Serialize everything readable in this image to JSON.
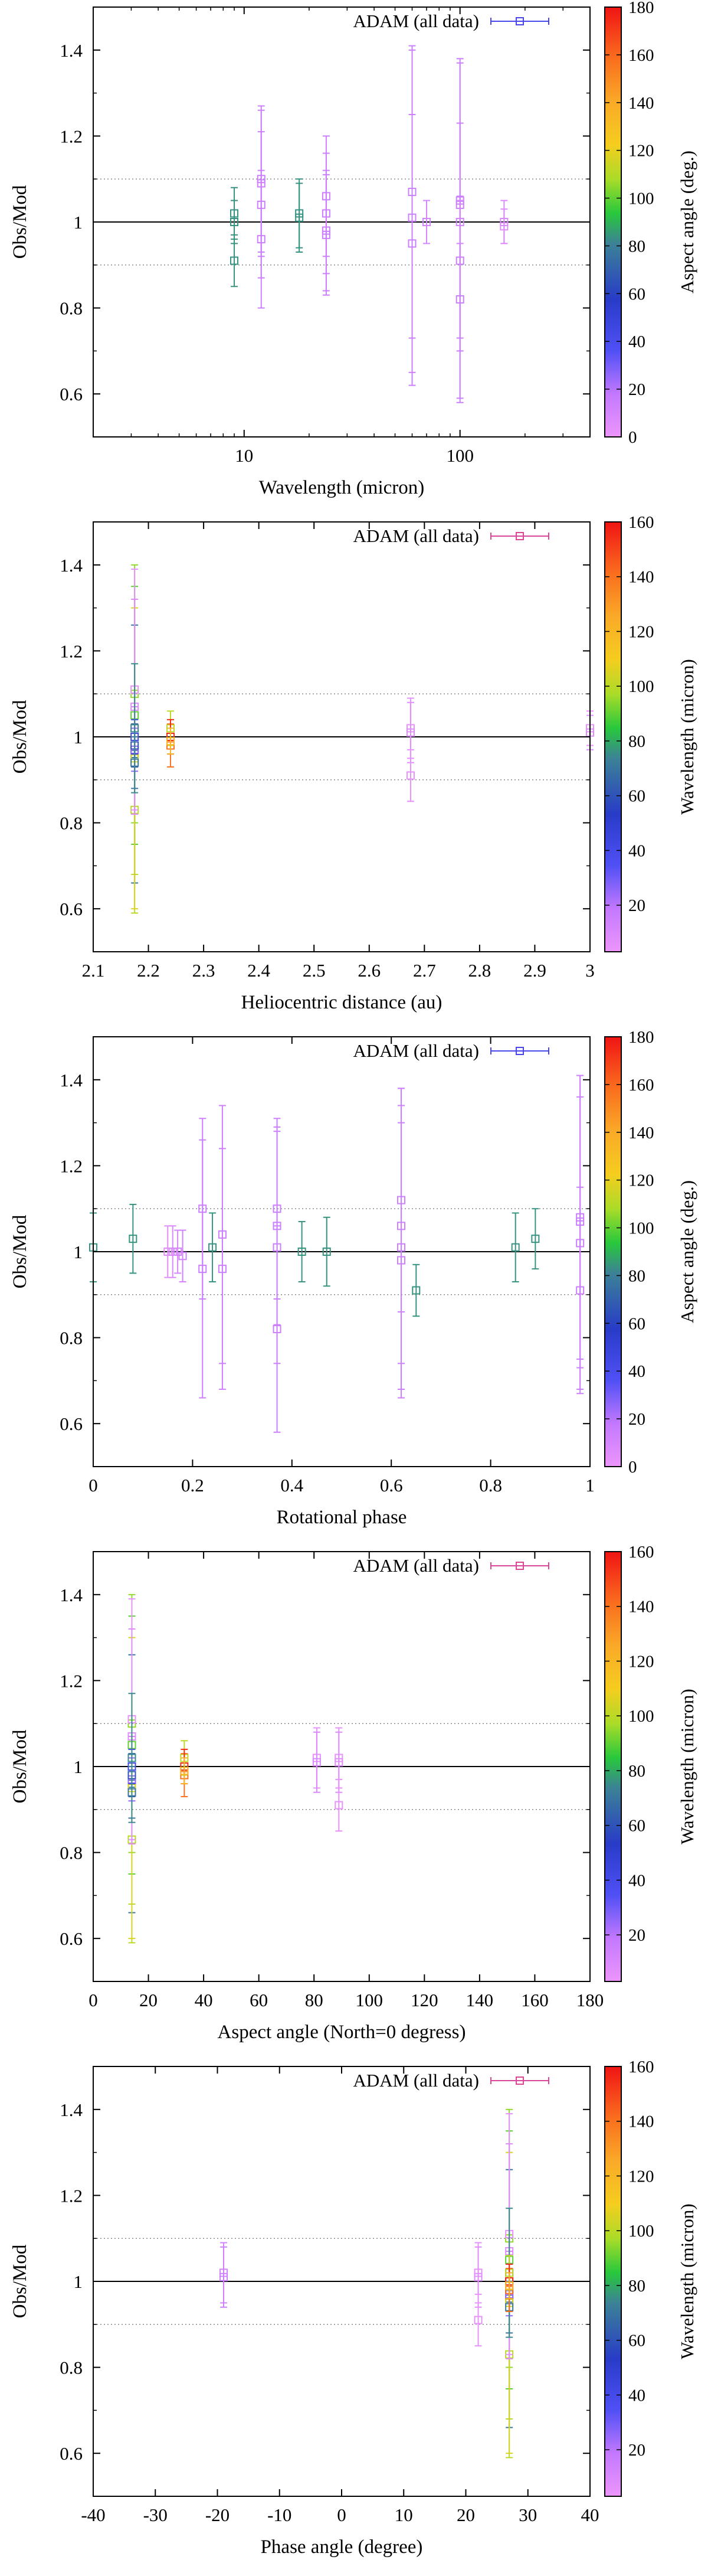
{
  "chart_data": [
    {
      "type": "scatter",
      "xscale": "log",
      "xlim": [
        2,
        400
      ],
      "ylim": [
        0.5,
        1.5
      ],
      "xticks": [
        10,
        100
      ],
      "xtick_labels": [
        "10",
        "100"
      ],
      "yticks": [
        0.6,
        0.8,
        1.0,
        1.2,
        1.4
      ],
      "ytick_labels": [
        "0.6",
        "0.8",
        "1",
        "1.2",
        "1.4"
      ],
      "xlabel": "Wavelength (micron)",
      "ylabel": "Obs/Mod",
      "legend": "ADAM (all data)",
      "colorbar": {
        "label": "Aspect angle (deg.)",
        "min": 0,
        "max": 180,
        "ticks": [
          0,
          20,
          40,
          60,
          80,
          100,
          120,
          140,
          160,
          180
        ],
        "tick_labels": [
          "0",
          "20",
          "40",
          "60",
          "80",
          "100",
          "120",
          "140",
          "160",
          "180"
        ]
      },
      "reference_lines": [
        1.0,
        0.9,
        1.1
      ],
      "points": [
        [
          9,
          1.02,
          0.06,
          84
        ],
        [
          9,
          0.91,
          0.06,
          84
        ],
        [
          9,
          1.0,
          0.05,
          84
        ],
        [
          12,
          1.09,
          0.17,
          14
        ],
        [
          12,
          1.1,
          0.17,
          14
        ],
        [
          12,
          1.04,
          0.17,
          14
        ],
        [
          12,
          0.96,
          0.16,
          14
        ],
        [
          18,
          1.02,
          0.08,
          84
        ],
        [
          18,
          1.01,
          0.08,
          84
        ],
        [
          24,
          0.98,
          0.14,
          14
        ],
        [
          24,
          1.06,
          0.14,
          14
        ],
        [
          24,
          1.02,
          0.14,
          14
        ],
        [
          24,
          0.97,
          0.14,
          14
        ],
        [
          60,
          1.01,
          0.39,
          14
        ],
        [
          60,
          0.95,
          0.3,
          14
        ],
        [
          60,
          1.07,
          0.34,
          14
        ],
        [
          70,
          1.0,
          0.05,
          10
        ],
        [
          100,
          1.04,
          0.34,
          14
        ],
        [
          100,
          1.05,
          0.32,
          14
        ],
        [
          100,
          0.91,
          0.32,
          14
        ],
        [
          100,
          0.82,
          0.24,
          14
        ],
        [
          100,
          1.0,
          0.05,
          10
        ],
        [
          160,
          0.99,
          0.04,
          5
        ],
        [
          160,
          1.0,
          0.05,
          8
        ]
      ]
    },
    {
      "type": "scatter",
      "xscale": "linear",
      "xlim": [
        2.1,
        3.0
      ],
      "ylim": [
        0.5,
        1.5
      ],
      "xticks": [
        2.1,
        2.2,
        2.3,
        2.4,
        2.5,
        2.6,
        2.7,
        2.8,
        2.9,
        3.0
      ],
      "xtick_labels": [
        "2.1",
        "2.2",
        "2.3",
        "2.4",
        "2.5",
        "2.6",
        "2.7",
        "2.8",
        "2.9",
        "3"
      ],
      "yticks": [
        0.6,
        0.8,
        1.0,
        1.2,
        1.4
      ],
      "ytick_labels": [
        "0.6",
        "0.8",
        "1",
        "1.2",
        "1.4"
      ],
      "xlabel": "Heliocentric distance (au)",
      "ylabel": "Obs/Mod",
      "legend": "ADAM (all data)",
      "colorbar": {
        "label": "Wavelength (micron)",
        "min": 3,
        "max": 160,
        "ticks": [
          20,
          40,
          60,
          80,
          100,
          120,
          140,
          160
        ],
        "tick_labels": [
          "20",
          "40",
          "60",
          "80",
          "100",
          "120",
          "140",
          "160"
        ]
      },
      "reference_lines": [
        1.0,
        0.9,
        1.1
      ],
      "points": [
        [
          2.175,
          1.1,
          0.3,
          95
        ],
        [
          2.175,
          1.05,
          0.3,
          90
        ],
        [
          2.175,
          1.0,
          0.32,
          100
        ],
        [
          2.175,
          0.96,
          0.3,
          70
        ],
        [
          2.175,
          0.83,
          0.24,
          100
        ],
        [
          2.175,
          0.95,
          0.35,
          105
        ],
        [
          2.175,
          1.11,
          0.28,
          5
        ],
        [
          2.175,
          1.07,
          0.25,
          8
        ],
        [
          2.175,
          1.02,
          0.05,
          12
        ],
        [
          2.175,
          0.97,
          0.05,
          25
        ],
        [
          2.175,
          1.0,
          0.04,
          40
        ],
        [
          2.175,
          0.98,
          0.05,
          60
        ],
        [
          2.175,
          0.94,
          0.06,
          70
        ],
        [
          2.175,
          1.02,
          0.15,
          75
        ],
        [
          2.24,
          1.02,
          0.04,
          100
        ],
        [
          2.24,
          0.98,
          0.05,
          140
        ],
        [
          2.24,
          1.0,
          0.04,
          155
        ],
        [
          2.24,
          0.99,
          0.03,
          120
        ],
        [
          2.675,
          1.02,
          0.07,
          5
        ],
        [
          2.675,
          1.01,
          0.07,
          8
        ],
        [
          2.675,
          0.91,
          0.06,
          5
        ],
        [
          3.0,
          1.02,
          0.04,
          5
        ],
        [
          3.0,
          1.01,
          0.04,
          8
        ]
      ]
    },
    {
      "type": "scatter",
      "xscale": "linear",
      "xlim": [
        0,
        1
      ],
      "ylim": [
        0.5,
        1.5
      ],
      "xticks": [
        0,
        0.2,
        0.4,
        0.6,
        0.8,
        1.0
      ],
      "xtick_labels": [
        "0",
        "0.2",
        "0.4",
        "0.6",
        "0.8",
        "1"
      ],
      "yticks": [
        0.6,
        0.8,
        1.0,
        1.2,
        1.4
      ],
      "ytick_labels": [
        "0.6",
        "0.8",
        "1",
        "1.2",
        "1.4"
      ],
      "xlabel": "Rotational phase",
      "ylabel": "Obs/Mod",
      "legend": "ADAM (all data)",
      "colorbar": {
        "label": "Aspect angle (deg.)",
        "min": 0,
        "max": 180,
        "ticks": [
          0,
          20,
          40,
          60,
          80,
          100,
          120,
          140,
          160,
          180
        ],
        "tick_labels": [
          "0",
          "20",
          "40",
          "60",
          "80",
          "100",
          "120",
          "140",
          "160",
          "180"
        ]
      },
      "reference_lines": [
        1.0,
        0.9,
        1.1
      ],
      "points": [
        [
          0.0,
          1.01,
          0.08,
          84
        ],
        [
          0.08,
          1.03,
          0.08,
          84
        ],
        [
          0.15,
          1.0,
          0.06,
          5
        ],
        [
          0.16,
          1.0,
          0.06,
          8
        ],
        [
          0.17,
          1.0,
          0.05,
          10
        ],
        [
          0.18,
          0.99,
          0.06,
          12
        ],
        [
          0.22,
          1.1,
          0.21,
          14
        ],
        [
          0.22,
          0.96,
          0.3,
          14
        ],
        [
          0.24,
          1.01,
          0.08,
          84
        ],
        [
          0.26,
          1.04,
          0.3,
          14
        ],
        [
          0.26,
          0.96,
          0.28,
          14
        ],
        [
          0.37,
          1.1,
          0.21,
          14
        ],
        [
          0.37,
          1.06,
          0.23,
          14
        ],
        [
          0.37,
          1.01,
          0.27,
          14
        ],
        [
          0.37,
          0.82,
          0.24,
          14
        ],
        [
          0.42,
          1.0,
          0.07,
          84
        ],
        [
          0.47,
          1.0,
          0.08,
          84
        ],
        [
          0.62,
          1.12,
          0.26,
          14
        ],
        [
          0.62,
          1.06,
          0.32,
          14
        ],
        [
          0.62,
          1.01,
          0.33,
          14
        ],
        [
          0.62,
          0.98,
          0.32,
          14
        ],
        [
          0.65,
          0.91,
          0.06,
          84
        ],
        [
          0.85,
          1.01,
          0.08,
          84
        ],
        [
          0.89,
          1.03,
          0.07,
          84
        ],
        [
          0.98,
          1.08,
          0.33,
          14
        ],
        [
          0.98,
          1.07,
          0.34,
          14
        ],
        [
          0.98,
          1.02,
          0.34,
          14
        ],
        [
          0.98,
          0.91,
          0.24,
          14
        ]
      ]
    },
    {
      "type": "scatter",
      "xscale": "linear",
      "xlim": [
        0,
        180
      ],
      "ylim": [
        0.5,
        1.5
      ],
      "xticks": [
        0,
        20,
        40,
        60,
        80,
        100,
        120,
        140,
        160,
        180
      ],
      "xtick_labels": [
        "0",
        "20",
        "40",
        "60",
        "80",
        "100",
        "120",
        "140",
        "160",
        "180"
      ],
      "yticks": [
        0.6,
        0.8,
        1.0,
        1.2,
        1.4
      ],
      "ytick_labels": [
        "0.6",
        "0.8",
        "1",
        "1.2",
        "1.4"
      ],
      "xlabel": "Aspect angle (North=0 degress)",
      "ylabel": "Obs/Mod",
      "legend": "ADAM (all data)",
      "colorbar": {
        "label": "Wavelength (micron)",
        "min": 3,
        "max": 160,
        "ticks": [
          20,
          40,
          60,
          80,
          100,
          120,
          140,
          160
        ],
        "tick_labels": [
          "20",
          "40",
          "60",
          "80",
          "100",
          "120",
          "140",
          "160"
        ]
      },
      "reference_lines": [
        1.0,
        0.9,
        1.1
      ],
      "points": [
        [
          14,
          1.1,
          0.3,
          95
        ],
        [
          14,
          1.05,
          0.3,
          90
        ],
        [
          14,
          1.0,
          0.32,
          100
        ],
        [
          14,
          0.96,
          0.3,
          70
        ],
        [
          14,
          0.83,
          0.24,
          100
        ],
        [
          14,
          0.95,
          0.35,
          105
        ],
        [
          14,
          1.11,
          0.28,
          5
        ],
        [
          14,
          1.07,
          0.25,
          8
        ],
        [
          14,
          1.02,
          0.05,
          12
        ],
        [
          14,
          0.97,
          0.05,
          25
        ],
        [
          14,
          1.0,
          0.04,
          40
        ],
        [
          14,
          0.98,
          0.05,
          60
        ],
        [
          14,
          0.94,
          0.06,
          70
        ],
        [
          14,
          1.02,
          0.15,
          75
        ],
        [
          33,
          1.02,
          0.04,
          100
        ],
        [
          33,
          0.98,
          0.05,
          140
        ],
        [
          33,
          1.0,
          0.04,
          155
        ],
        [
          33,
          0.99,
          0.03,
          120
        ],
        [
          81,
          1.02,
          0.07,
          5
        ],
        [
          81,
          1.01,
          0.07,
          10
        ],
        [
          89,
          1.02,
          0.07,
          5
        ],
        [
          89,
          1.01,
          0.07,
          8
        ],
        [
          89,
          0.91,
          0.06,
          5
        ]
      ]
    },
    {
      "type": "scatter",
      "xscale": "linear",
      "xlim": [
        -40,
        40
      ],
      "ylim": [
        0.5,
        1.5
      ],
      "xticks": [
        -40,
        -30,
        -20,
        -10,
        0,
        10,
        20,
        30,
        40
      ],
      "xtick_labels": [
        "-40",
        "-30",
        "-20",
        "-10",
        "0",
        "10",
        "20",
        "30",
        "40"
      ],
      "yticks": [
        0.6,
        0.8,
        1.0,
        1.2,
        1.4
      ],
      "ytick_labels": [
        "0.6",
        "0.8",
        "1",
        "1.2",
        "1.4"
      ],
      "xlabel": "Phase angle (degree)",
      "ylabel": "Obs/Mod",
      "legend": "ADAM (all data)",
      "colorbar": {
        "label": "Wavelength (micron)",
        "min": 3,
        "max": 160,
        "ticks": [
          20,
          40,
          60,
          80,
          100,
          120,
          140,
          160
        ],
        "tick_labels": [
          "20",
          "40",
          "60",
          "80",
          "100",
          "120",
          "140",
          "160"
        ]
      },
      "reference_lines": [
        1.0,
        0.9,
        1.1
      ],
      "points": [
        [
          -19,
          1.02,
          0.07,
          12
        ],
        [
          -19,
          1.01,
          0.07,
          15
        ],
        [
          22,
          1.02,
          0.07,
          5
        ],
        [
          22,
          1.01,
          0.07,
          8
        ],
        [
          22,
          0.91,
          0.06,
          5
        ],
        [
          27,
          1.1,
          0.3,
          95
        ],
        [
          27,
          1.05,
          0.3,
          90
        ],
        [
          27,
          1.0,
          0.32,
          100
        ],
        [
          27,
          0.96,
          0.3,
          70
        ],
        [
          27,
          0.83,
          0.24,
          100
        ],
        [
          27,
          0.95,
          0.35,
          105
        ],
        [
          27,
          1.11,
          0.28,
          5
        ],
        [
          27,
          1.07,
          0.25,
          8
        ],
        [
          27,
          1.02,
          0.05,
          12
        ],
        [
          27,
          0.97,
          0.05,
          25
        ],
        [
          27,
          1.0,
          0.04,
          40
        ],
        [
          27,
          0.98,
          0.05,
          60
        ],
        [
          27,
          0.94,
          0.06,
          70
        ],
        [
          27,
          1.02,
          0.15,
          75
        ],
        [
          27,
          1.02,
          0.04,
          100
        ],
        [
          27,
          0.98,
          0.05,
          140
        ],
        [
          27,
          1.0,
          0.04,
          155
        ],
        [
          27,
          0.99,
          0.03,
          120
        ]
      ]
    }
  ]
}
